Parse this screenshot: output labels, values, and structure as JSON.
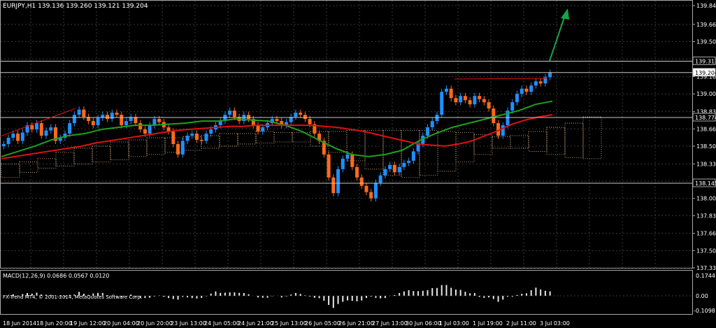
{
  "header": {
    "symbol_line": "EURJPY,H1  139.136 139.260 139.121 139.204"
  },
  "price_scale": {
    "ticks": [
      "139.845",
      "139.665",
      "139.500",
      "139.335",
      "139.165",
      "139.000",
      "138.830",
      "138.665",
      "138.500",
      "138.330",
      "138.165",
      "138.000",
      "137.835",
      "137.665",
      "137.500",
      "137.335"
    ],
    "highlighted_levels": [
      "139.313",
      "139.204",
      "138.774",
      "138.145"
    ]
  },
  "time_scale": {
    "labels": [
      "18 Jun 2014",
      "18 Jun 20:00",
      "19 Jun 12:00",
      "20 Jun 04:00",
      "20 Jun 20:00",
      "23 Jun 13:00",
      "24 Jun 05:00",
      "24 Jun 21:00",
      "25 Jun 13:00",
      "26 Jun 05:00",
      "26 Jun 21:00",
      "27 Jun 13:00",
      "30 Jun 06:00",
      "1 Jul 03:00",
      "1 Jul 19:00",
      "2 Jul 11:00",
      "3 Jul 03:00"
    ]
  },
  "macd": {
    "label": "MACD(12,26,9) 0.0686 0.0567 0.0120",
    "scale_top": "0.1744",
    "scale_zero": "0.00",
    "scale_bottom": "-0.1098"
  },
  "footer": {
    "copyright": "FX-Trend MT4, © 2001-2014, MetaQuotes Software Corp."
  },
  "colors": {
    "background": "#000000",
    "grid": "#3a3a3a",
    "bull_candle": "#1e90ff",
    "bear_candle": "#ff6a1a",
    "ma_red": "#e01010",
    "ma_green": "#1fa01f",
    "cloud": "#f4c49a",
    "arrow": "#16a34a",
    "level_line": "#c8c8c8"
  },
  "chart_data": {
    "type": "candlestick",
    "symbol": "EURJPY",
    "timeframe": "H1",
    "ohlc_current": {
      "open": 139.136,
      "high": 139.26,
      "low": 139.121,
      "close": 139.204
    },
    "ylim": [
      137.335,
      139.845
    ],
    "closes": [
      138.52,
      138.58,
      138.62,
      138.55,
      138.63,
      138.7,
      138.66,
      138.72,
      138.6,
      138.65,
      138.68,
      138.55,
      138.58,
      138.62,
      138.72,
      138.8,
      138.85,
      138.78,
      138.74,
      138.7,
      138.77,
      138.8,
      138.76,
      138.82,
      138.8,
      138.7,
      138.74,
      138.78,
      138.72,
      138.66,
      138.62,
      138.7,
      138.76,
      138.73,
      138.68,
      138.64,
      138.52,
      138.42,
      138.55,
      138.6,
      138.62,
      138.56,
      138.55,
      138.62,
      138.66,
      138.7,
      138.74,
      138.8,
      138.84,
      138.78,
      138.74,
      138.8,
      138.76,
      138.7,
      138.64,
      138.68,
      138.72,
      138.76,
      138.74,
      138.7,
      138.73,
      138.78,
      138.82,
      138.8,
      138.76,
      138.71,
      138.62,
      138.55,
      138.42,
      138.2,
      138.05,
      138.28,
      138.38,
      138.42,
      138.3,
      138.2,
      138.12,
      138.06,
      138.0,
      138.15,
      138.22,
      138.28,
      138.32,
      138.25,
      138.3,
      138.34,
      138.36,
      138.45,
      138.52,
      138.6,
      138.68,
      138.74,
      138.8,
      139.02,
      139.05,
      138.96,
      138.92,
      138.98,
      138.94,
      138.9,
      138.98,
      138.95,
      138.92,
      138.86,
      138.72,
      138.6,
      138.7,
      138.84,
      138.92,
      139.0,
      139.05,
      139.02,
      139.08,
      139.12,
      139.1,
      139.16,
      139.204
    ],
    "ma_red": [
      138.38,
      138.4,
      138.42,
      138.44,
      138.46,
      138.48,
      138.5,
      138.53,
      138.55,
      138.57,
      138.59,
      138.61,
      138.63,
      138.65,
      138.66,
      138.67,
      138.68,
      138.69,
      138.69,
      138.7,
      138.7,
      138.7,
      138.7,
      138.7,
      138.69,
      138.68,
      138.66,
      138.64,
      138.61,
      138.58,
      138.55,
      138.52,
      138.51,
      138.5,
      138.52,
      138.55,
      138.6,
      138.65,
      138.71,
      138.75,
      138.78,
      138.8
    ],
    "ma_green": [
      138.4,
      138.45,
      138.5,
      138.56,
      138.6,
      138.62,
      138.66,
      138.68,
      138.7,
      138.7,
      138.71,
      138.72,
      138.74,
      138.74,
      138.76,
      138.75,
      138.74,
      138.7,
      138.64,
      138.56,
      138.48,
      138.42,
      138.4,
      138.42,
      138.46,
      138.55,
      138.62,
      138.68,
      138.72,
      138.76,
      138.8,
      138.84,
      138.9,
      138.93
    ],
    "macd_histogram_range": [
      -0.1098,
      0.1744
    ],
    "projected_direction": "up"
  }
}
